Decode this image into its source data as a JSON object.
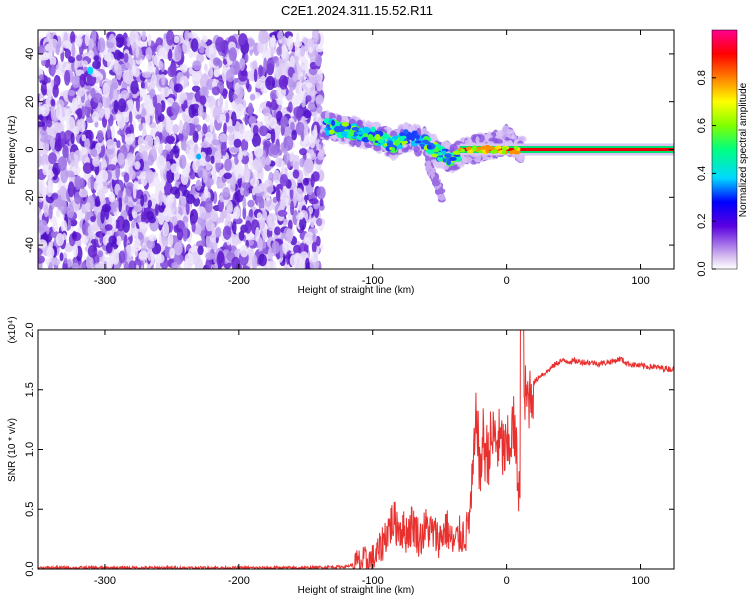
{
  "title": "C2E1.2024.311.15.52.R11",
  "colors": {
    "snr_line": "#e8302e",
    "scatter_light": "#d9c8f5",
    "scatter_dark": "#6a20d0"
  },
  "chart_data": [
    {
      "id": "spectrogram",
      "type": "heatmap",
      "xlabel": "Height of straight line (km)",
      "ylabel": "Frequency (Hz)",
      "xlim": [
        -350,
        125
      ],
      "ylim": [
        -50,
        50
      ],
      "xticks": [
        -300,
        -200,
        -100,
        0,
        100
      ],
      "yticks": [
        -40,
        -20,
        0,
        20,
        40
      ],
      "colorbar": {
        "label": "Normalized spectral amplitude",
        "range": [
          0,
          1
        ],
        "ticks": [
          0.0,
          0.2,
          0.4,
          0.6,
          0.8
        ],
        "tick_labels": [
          "0.0",
          "0.2",
          "0.4",
          "0.6",
          "0.8"
        ]
      },
      "features": {
        "noise_region_x": [
          -350,
          -138
        ],
        "noise_region_y": [
          -50,
          48
        ],
        "signal_track": [
          {
            "x": -138,
            "f": 10
          },
          {
            "x": -120,
            "f": 8
          },
          {
            "x": -100,
            "f": 6
          },
          {
            "x": -85,
            "f": 2
          },
          {
            "x": -75,
            "f": 5
          },
          {
            "x": -60,
            "f": 3
          },
          {
            "x": -50,
            "f": -2
          },
          {
            "x": -40,
            "f": -4
          },
          {
            "x": -30,
            "f": 0
          },
          {
            "x": -20,
            "f": 1
          },
          {
            "x": -10,
            "f": 1
          },
          {
            "x": 0,
            "f": 4
          },
          {
            "x": 10,
            "f": 0
          },
          {
            "x": 125,
            "f": 0
          }
        ],
        "steady_line_x": [
          -35,
          125
        ],
        "steady_line_f": 0
      }
    },
    {
      "id": "snr",
      "type": "line",
      "xlabel": "Height of straight line (km)",
      "ylabel": "SNR (10 * v/v)",
      "y_multiplier": "(x10⁴)",
      "xlim": [
        -350,
        125
      ],
      "ylim": [
        0,
        2.0
      ],
      "xticks": [
        -300,
        -200,
        -100,
        0,
        100
      ],
      "yticks": [
        0.0,
        0.5,
        1.0,
        1.5,
        2.0
      ],
      "ytick_labels": [
        "0.0",
        "0.5",
        "1.0",
        "1.5",
        "2.0"
      ],
      "series": [
        {
          "x": [
            -350,
            -300,
            -250,
            -200,
            -150,
            -120,
            -110,
            -100,
            -95,
            -90,
            -85,
            -80,
            -75,
            -70,
            -65,
            -60,
            -55,
            -50,
            -45,
            -40,
            -35,
            -30,
            -27,
            -25,
            -22,
            -20,
            -18,
            -15,
            -10,
            -5,
            0,
            5,
            8,
            10,
            12,
            15,
            20,
            25,
            30,
            35,
            40,
            50,
            60,
            70,
            80,
            85,
            90,
            100,
            110,
            125
          ],
          "y": [
            0.01,
            0.01,
            0.01,
            0.01,
            0.01,
            0.02,
            0.05,
            0.08,
            0.15,
            0.3,
            0.4,
            0.35,
            0.3,
            0.38,
            0.25,
            0.35,
            0.3,
            0.25,
            0.35,
            0.2,
            0.28,
            0.3,
            0.5,
            0.8,
            1.35,
            0.7,
            1.1,
            0.95,
            1.1,
            1.05,
            0.95,
            1.2,
            0.85,
            0.6,
            1.5,
            1.4,
            1.55,
            1.62,
            1.65,
            1.7,
            1.74,
            1.74,
            1.73,
            1.72,
            1.74,
            1.76,
            1.72,
            1.7,
            1.69,
            1.67
          ]
        }
      ]
    }
  ]
}
